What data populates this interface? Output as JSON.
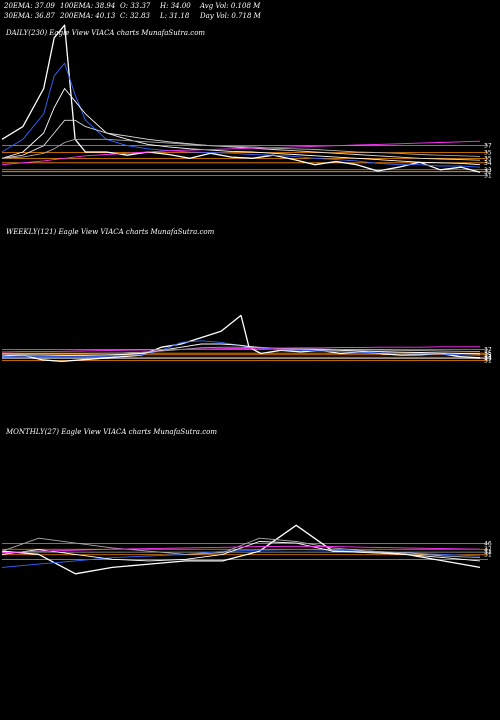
{
  "stats": {
    "ema20": "20EMA: 37.09",
    "ema100": "100EMA: 38.94",
    "open": "O: 33.37",
    "high": "H: 34.00",
    "avgvol": "Avg Vol: 0.108  M",
    "ema30": "30EMA: 36.87",
    "ema200": "200EMA: 40.13",
    "close": "C: 32.83",
    "low": "L: 31.18",
    "dayvol": "Day Vol: 0.718  M"
  },
  "panels": {
    "daily": "DAILY(230) Eagle   View  VIACA charts MunafaSutra.com",
    "weekly": "WEEKLY(121) Eagle   View  VIACA charts MunafaSutra.com",
    "monthly": "MONTHLY(27) Eagle   View  VIACA charts MunafaSutra.com"
  },
  "chart_data": [
    {
      "type": "line",
      "name": "daily",
      "x": [
        0,
        10,
        20,
        25,
        30,
        35,
        40,
        50,
        60,
        70,
        80,
        90,
        100,
        110,
        120,
        130,
        140,
        150,
        160,
        170,
        180,
        190,
        200,
        210,
        220,
        229
      ],
      "series": [
        {
          "role": "price",
          "color": "#ffffff",
          "values": [
            38,
            40,
            46,
            54,
            56,
            38,
            36,
            36,
            35.5,
            36,
            35.6,
            35,
            35.8,
            35.2,
            35,
            35.5,
            34.8,
            34,
            34.5,
            34,
            33,
            33.6,
            34.4,
            33.2,
            33.6,
            32.8
          ]
        },
        {
          "role": "ema",
          "color": "#3366ff",
          "values": [
            36,
            38,
            42,
            48,
            50,
            45,
            41,
            38,
            37,
            36.5,
            36.2,
            36,
            35.9,
            35.8,
            35.6,
            35.5,
            35.3,
            35,
            34.8,
            34.6,
            34.2,
            34,
            34,
            33.8,
            33.8,
            33.6
          ]
        },
        {
          "role": "ema",
          "color": "#ffffff",
          "values": [
            35,
            36,
            39,
            43,
            46,
            44,
            42,
            39,
            38,
            37.2,
            36.8,
            36.5,
            36.3,
            36.1,
            36,
            35.8,
            35.6,
            35.4,
            35.2,
            35,
            34.8,
            34.6,
            34.4,
            34.3,
            34.2,
            34
          ]
        },
        {
          "role": "ema",
          "color": "#dddddd",
          "values": [
            35,
            35.5,
            37,
            39,
            41,
            41,
            40,
            39,
            38.5,
            38,
            37.6,
            37.3,
            37,
            36.8,
            36.6,
            36.4,
            36.2,
            36,
            35.8,
            35.6,
            35.4,
            35.2,
            35,
            34.9,
            34.8,
            34.7
          ]
        },
        {
          "role": "ema",
          "color": "#aaaaaa",
          "values": [
            35,
            35.2,
            35.8,
            36.5,
            37.5,
            38,
            38,
            38,
            37.8,
            37.6,
            37.4,
            37.2,
            37,
            36.9,
            36.8,
            36.6,
            36.5,
            36.4,
            36.2,
            36,
            35.9,
            35.8,
            35.6,
            35.5,
            35.4,
            35.3
          ]
        },
        {
          "role": "ema",
          "color": "#ff33ff",
          "values": [
            34,
            34.3,
            34.6,
            34.8,
            35,
            35.2,
            35.4,
            35.6,
            35.8,
            36,
            36.2,
            36.3,
            36.4,
            36.5,
            36.6,
            36.7,
            36.8,
            36.9,
            37,
            37.1,
            37.2,
            37.3,
            37.4,
            37.5,
            37.6,
            37.7
          ]
        }
      ],
      "hlines": [
        {
          "value": 37,
          "color": "#ff8800",
          "label": "37"
        },
        {
          "value": 35.9,
          "color": "#ff8800",
          "label": "35"
        },
        {
          "value": 35,
          "color": "#ff8800",
          "label": "35"
        },
        {
          "value": 34.3,
          "color": "#ff8800",
          "label": "34"
        },
        {
          "value": 33.2,
          "color": "#ff8800",
          "label": "33"
        },
        {
          "value": 32.9,
          "color": "#aaaaaa",
          "label": "32"
        },
        {
          "value": 32.3,
          "color": "#ff8800",
          "label": "31"
        }
      ],
      "ylim": [
        30.8,
        62
      ]
    },
    {
      "type": "line",
      "name": "weekly",
      "x": [
        0,
        5,
        10,
        15,
        20,
        25,
        30,
        35,
        40,
        45,
        50,
        55,
        60,
        62,
        65,
        70,
        75,
        80,
        85,
        90,
        95,
        100,
        105,
        110,
        115,
        120
      ],
      "series": [
        {
          "role": "price",
          "color": "#ffffff",
          "values": [
            35,
            35.5,
            34,
            33.5,
            34,
            34.5,
            35,
            35.5,
            38,
            39,
            41,
            43,
            48,
            38,
            36,
            37,
            36.5,
            37,
            36,
            36.5,
            36,
            35.5,
            35.6,
            36,
            35,
            34.6
          ]
        },
        {
          "role": "ema",
          "color": "#3366ff",
          "values": [
            35,
            35.2,
            35.1,
            35,
            35,
            35.1,
            35.3,
            35.6,
            37,
            39.5,
            40,
            39.5,
            38.5,
            38,
            37.6,
            37.2,
            37,
            36.8,
            36.6,
            36.4,
            36.2,
            36,
            35.9,
            35.8,
            35.6,
            35.4
          ]
        },
        {
          "role": "ema",
          "color": "#ffffff",
          "values": [
            35.5,
            35.6,
            35.5,
            35.4,
            35.4,
            35.5,
            35.7,
            36,
            37,
            38,
            39,
            39,
            38.6,
            38.2,
            37.9,
            37.6,
            37.4,
            37.2,
            37,
            36.8,
            36.6,
            36.4,
            36.3,
            36.2,
            36,
            35.9
          ]
        },
        {
          "role": "ema",
          "color": "#aaaaaa",
          "values": [
            36,
            36,
            36,
            36,
            36,
            36.1,
            36.2,
            36.4,
            36.8,
            37.3,
            37.8,
            38,
            38,
            37.9,
            37.8,
            37.6,
            37.5,
            37.4,
            37.3,
            37.2,
            37.1,
            37,
            36.9,
            36.8,
            36.7,
            36.6
          ]
        },
        {
          "role": "ema",
          "color": "#ff33ff",
          "values": [
            36.5,
            36.6,
            36.6,
            36.7,
            36.8,
            36.9,
            37,
            37.1,
            37.2,
            37.3,
            37.4,
            37.5,
            37.6,
            37.6,
            37.7,
            37.7,
            37.8,
            37.8,
            37.9,
            37.9,
            38,
            38,
            38,
            38.1,
            38.1,
            38.1
          ]
        }
      ],
      "hlines": [
        {
          "value": 37.3,
          "color": "#ff8800",
          "label": "37"
        },
        {
          "value": 36.1,
          "color": "#ff8800",
          "label": "35"
        },
        {
          "value": 35.6,
          "color": "#ff8800",
          "label": "35"
        },
        {
          "value": 34.8,
          "color": "#ff8800",
          "label": "34"
        },
        {
          "value": 34.4,
          "color": "#aaaaaa",
          "label": "33"
        },
        {
          "value": 33.8,
          "color": "#ff8800",
          "label": "31"
        }
      ],
      "ylim": [
        30.8,
        62
      ]
    },
    {
      "type": "line",
      "name": "monthly",
      "x": [
        0,
        2,
        4,
        6,
        8,
        10,
        12,
        14,
        16,
        18,
        20,
        22,
        24,
        26
      ],
      "series": [
        {
          "role": "price",
          "color": "#ffffff",
          "values": [
            38,
            37,
            31,
            33,
            34,
            35,
            35,
            38,
            46,
            38,
            38,
            37,
            35,
            33
          ]
        },
        {
          "role": "ema",
          "color": "#3366ff",
          "values": [
            33,
            34,
            35,
            36,
            36.5,
            37,
            38,
            38.3,
            38.5,
            38.3,
            38,
            37.5,
            37,
            36.5
          ]
        },
        {
          "role": "ema",
          "color": "#ffffff",
          "values": [
            37,
            38.5,
            37,
            35.5,
            35,
            35.5,
            37,
            41,
            40.5,
            38,
            37.5,
            37,
            36,
            35
          ]
        },
        {
          "role": "ema",
          "color": "#aaaaaa",
          "values": [
            38,
            42,
            40.5,
            39,
            38,
            37,
            37.5,
            42,
            41,
            39,
            38,
            37.5,
            36.5,
            36
          ]
        },
        {
          "role": "ema",
          "color": "#ff33ff",
          "values": [
            37.5,
            38,
            38.3,
            38.6,
            38.8,
            39,
            39.2,
            39.4,
            39.5,
            39.4,
            39.2,
            39,
            38.8,
            38.6
          ]
        }
      ],
      "hlines": [
        {
          "value": 40.4,
          "color": "#ff8800",
          "label": "46"
        },
        {
          "value": 38.6,
          "color": "#ff8800",
          "label": "37"
        },
        {
          "value": 37.7,
          "color": "#aaaaaa",
          "label": "33"
        },
        {
          "value": 36.9,
          "color": "#ff8800",
          "label": "31"
        },
        {
          "value": 35.4,
          "color": "#ff8800",
          "label": ""
        }
      ],
      "ylim": [
        26,
        60
      ]
    }
  ]
}
